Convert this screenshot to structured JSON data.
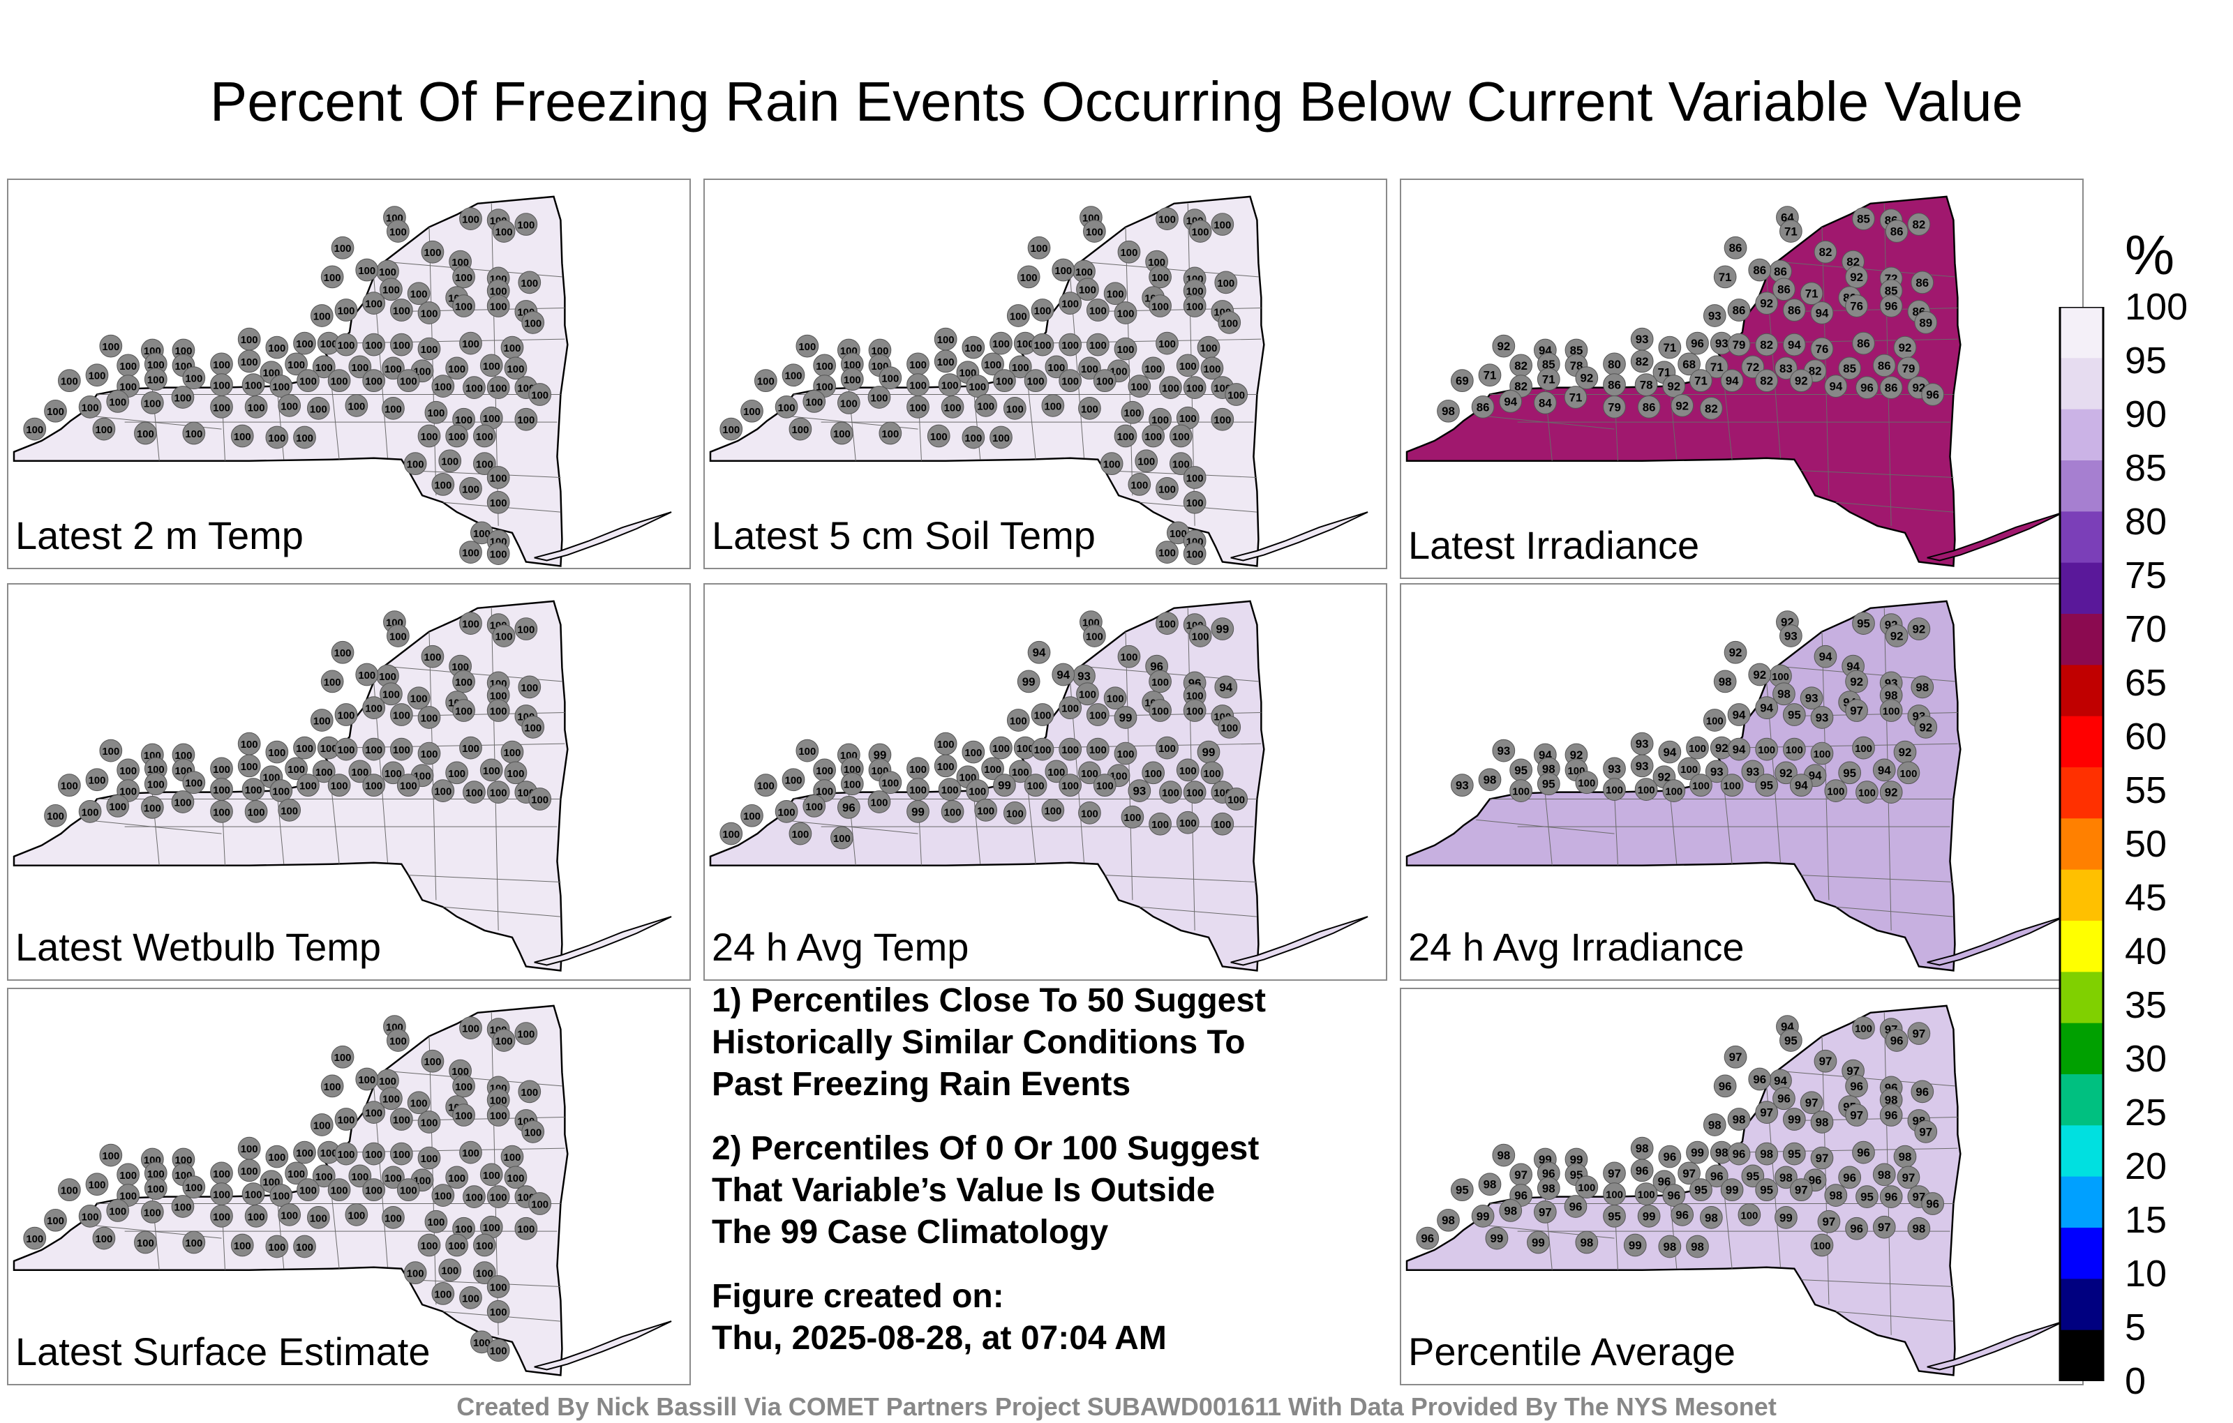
{
  "title": "Percent Of Freezing Rain Events Occurring Below Current Variable Value",
  "panels": [
    {
      "label": "Latest 2 m Temp",
      "fill": "#efe9f4",
      "values": [
        100,
        100,
        100,
        100,
        100,
        100,
        100,
        100,
        100,
        100,
        100,
        100,
        100,
        100,
        100,
        100,
        100,
        100,
        100,
        100,
        100,
        100,
        100,
        100,
        100,
        100,
        100,
        100,
        100,
        100,
        100,
        100,
        100,
        100,
        100,
        100,
        100,
        100,
        100,
        100,
        100,
        100,
        100,
        100,
        100,
        100,
        100,
        100,
        100,
        100,
        100,
        100,
        100,
        100,
        100,
        100,
        100,
        100,
        100,
        100,
        100,
        100,
        100,
        100,
        100,
        100,
        100,
        100,
        100,
        100,
        100,
        100,
        100,
        100,
        100,
        100,
        100,
        100,
        100,
        100,
        100,
        100,
        100,
        100,
        100,
        100,
        100,
        100,
        100,
        100,
        100,
        100,
        100,
        100,
        100,
        100,
        100,
        100,
        100,
        100,
        100,
        100,
        100,
        100,
        100,
        100,
        100,
        100
      ]
    },
    {
      "label": "Latest 5 cm Soil Temp",
      "fill": "#efe9f4",
      "values": [
        100,
        100,
        100,
        100,
        100,
        100,
        100,
        100,
        100,
        100,
        100,
        100,
        100,
        100,
        100,
        100,
        100,
        100,
        100,
        100,
        100,
        100,
        100,
        100,
        100,
        100,
        100,
        100,
        100,
        100,
        100,
        100,
        100,
        100,
        100,
        100,
        100,
        100,
        100,
        100,
        100,
        100,
        100,
        100,
        100,
        100,
        100,
        100,
        100,
        100,
        100,
        100,
        100,
        100,
        100,
        100,
        100,
        100,
        100,
        100,
        100,
        100,
        100,
        100,
        100,
        100,
        100,
        100,
        100,
        100,
        100,
        100,
        100,
        100,
        100,
        100,
        100,
        100,
        100,
        100,
        100,
        100,
        100,
        100,
        100,
        100,
        100,
        100,
        100,
        100,
        100,
        100,
        100,
        100,
        100,
        100,
        100,
        100,
        100,
        100,
        100,
        100,
        100,
        100,
        100,
        100,
        100,
        100
      ]
    },
    {
      "label": "Latest Irradiance",
      "fill": "#a0186e",
      "values": [
        64,
        71,
        85,
        86,
        86,
        82,
        86,
        82,
        82,
        86,
        71,
        86,
        92,
        72,
        86,
        86,
        71,
        86,
        85,
        92,
        86,
        93,
        86,
        94,
        76,
        96,
        86,
        89,
        92,
        94,
        85,
        93,
        71,
        96,
        93,
        79,
        82,
        94,
        76,
        86,
        92,
        82,
        85,
        78,
        80,
        82,
        71,
        68,
        71,
        72,
        83,
        82,
        85,
        86,
        79,
        69,
        71,
        82,
        71,
        92,
        86,
        78,
        92,
        71,
        94,
        82,
        92,
        94,
        96,
        86,
        92,
        96,
        98,
        86,
        94,
        84,
        71,
        79,
        86,
        92,
        82
      ]
    },
    {
      "label": "Latest Wetbulb Temp",
      "fill": "#efe9f4",
      "values": [
        100,
        100,
        100,
        100,
        100,
        100,
        100,
        100,
        100,
        100,
        100,
        100,
        100,
        100,
        100,
        100,
        100,
        100,
        100,
        100,
        100,
        100,
        100,
        100,
        100,
        100,
        100,
        100,
        100,
        100,
        100,
        100,
        100,
        100,
        100,
        100,
        100,
        100,
        100,
        100,
        100,
        100,
        100,
        100,
        100,
        100,
        100,
        100,
        100,
        100,
        100,
        100,
        100,
        100,
        100,
        100,
        100,
        100,
        100,
        100,
        100,
        100,
        100,
        100,
        100,
        100,
        100,
        100,
        100,
        100,
        100,
        100,
        100,
        100,
        100,
        100,
        100,
        100,
        100,
        100
      ]
    },
    {
      "label": "24 h Avg Temp",
      "fill": "#e6dcf0",
      "values": [
        100,
        100,
        100,
        100,
        100,
        99,
        94,
        100,
        96,
        93,
        99,
        94,
        100,
        96,
        94,
        100,
        100,
        100,
        100,
        100,
        100,
        100,
        100,
        99,
        100,
        100,
        100,
        100,
        100,
        100,
        99,
        100,
        100,
        100,
        100,
        100,
        100,
        100,
        100,
        100,
        99,
        100,
        100,
        100,
        100,
        100,
        100,
        100,
        100,
        100,
        100,
        100,
        100,
        100,
        100,
        100,
        100,
        100,
        100,
        100,
        100,
        100,
        100,
        99,
        100,
        100,
        100,
        93,
        100,
        100,
        100,
        100,
        100,
        100,
        100,
        96,
        100,
        99,
        100,
        100,
        100,
        100,
        100,
        100,
        100,
        100,
        100,
        100,
        100,
        100
      ]
    },
    {
      "label": "24 h Avg Irradiance",
      "fill": "#c7b0e0",
      "values": [
        92,
        93,
        95,
        92,
        92,
        92,
        92,
        94,
        94,
        100,
        98,
        92,
        92,
        93,
        98,
        98,
        93,
        94,
        98,
        94,
        94,
        100,
        95,
        93,
        97,
        100,
        93,
        92,
        93,
        94,
        92,
        93,
        94,
        100,
        92,
        94,
        100,
        100,
        100,
        100,
        92,
        95,
        98,
        100,
        93,
        93,
        92,
        100,
        93,
        93,
        92,
        94,
        95,
        94,
        100,
        93,
        98,
        100,
        95,
        100,
        100,
        100,
        100,
        100,
        100,
        95,
        94,
        100,
        100,
        92
      ]
    },
    {
      "label": "Latest Surface Estimate",
      "fill": "#efe9f4",
      "values": [
        100,
        100,
        100,
        100,
        100,
        100,
        100,
        100,
        100,
        100,
        100,
        100,
        100,
        100,
        100,
        100,
        100,
        100,
        100,
        100,
        100,
        100,
        100,
        100,
        100,
        100,
        100,
        100,
        100,
        100,
        100,
        100,
        100,
        100,
        100,
        100,
        100,
        100,
        100,
        100,
        100,
        100,
        100,
        100,
        100,
        100,
        100,
        100,
        100,
        100,
        100,
        100,
        100,
        100,
        100,
        100,
        100,
        100,
        100,
        100,
        100,
        100,
        100,
        100,
        100,
        100,
        100,
        100,
        100,
        100,
        100,
        100,
        100,
        100,
        100,
        100,
        100,
        100,
        100,
        100,
        100,
        100,
        100,
        100,
        100,
        100,
        100,
        100,
        100,
        100,
        100,
        100,
        100,
        100,
        100,
        100,
        100,
        100,
        100,
        100,
        100,
        100,
        100,
        100,
        100,
        100
      ]
    },
    {
      "label": "Percentile Average",
      "fill": "#d9c9ea",
      "values": [
        94,
        95,
        100,
        97,
        96,
        97,
        97,
        97,
        97,
        94,
        96,
        96,
        96,
        96,
        96,
        96,
        97,
        95,
        98,
        97,
        98,
        98,
        99,
        98,
        97,
        96,
        98,
        97,
        98,
        99,
        99,
        98,
        96,
        99,
        98,
        96,
        98,
        95,
        97,
        96,
        98,
        97,
        96,
        95,
        97,
        96,
        96,
        97,
        96,
        95,
        98,
        96,
        96,
        98,
        97,
        95,
        98,
        96,
        98,
        100,
        100,
        100,
        96,
        95,
        99,
        95,
        97,
        98,
        95,
        96,
        97,
        96,
        98,
        99,
        98,
        97,
        96,
        95,
        99,
        96,
        98,
        100,
        99,
        97,
        96,
        97,
        98,
        96,
        99,
        99,
        98,
        99,
        98,
        98,
        100
      ]
    }
  ],
  "notes": {
    "line1": "1) Percentiles Close To 50 Suggest",
    "line2": "Historically Similar Conditions To",
    "line3": "Past Freezing Rain Events",
    "line4": "2) Percentiles Of 0 Or 100 Suggest",
    "line5": "That Variable’s Value Is Outside",
    "line6": "The 99 Case Climatology",
    "line7": "Figure created on:",
    "line8": "Thu, 2025-08-28, at 07:04 AM"
  },
  "credit": "Created By Nick Bassill Via COMET Partners Project SUBAWD001611 With Data Provided By The NYS Mesonet",
  "colorbar": {
    "unit": "%",
    "ticks": [
      "100",
      "95",
      "90",
      "85",
      "80",
      "75",
      "70",
      "65",
      "60",
      "55",
      "50",
      "45",
      "40",
      "35",
      "30",
      "25",
      "20",
      "15",
      "10",
      "5",
      "0"
    ],
    "stops": [
      "#000000",
      "#000080",
      "#0000ff",
      "#00a0ff",
      "#00e0e0",
      "#00c080",
      "#00a000",
      "#80d000",
      "#ffff00",
      "#ffc000",
      "#ff8000",
      "#ff3000",
      "#ff0000",
      "#c00000",
      "#8b0a50",
      "#5a189a",
      "#7b3fb8",
      "#a67fd0",
      "#cbb3e6",
      "#e6dcf0",
      "#f4f0f8"
    ]
  }
}
